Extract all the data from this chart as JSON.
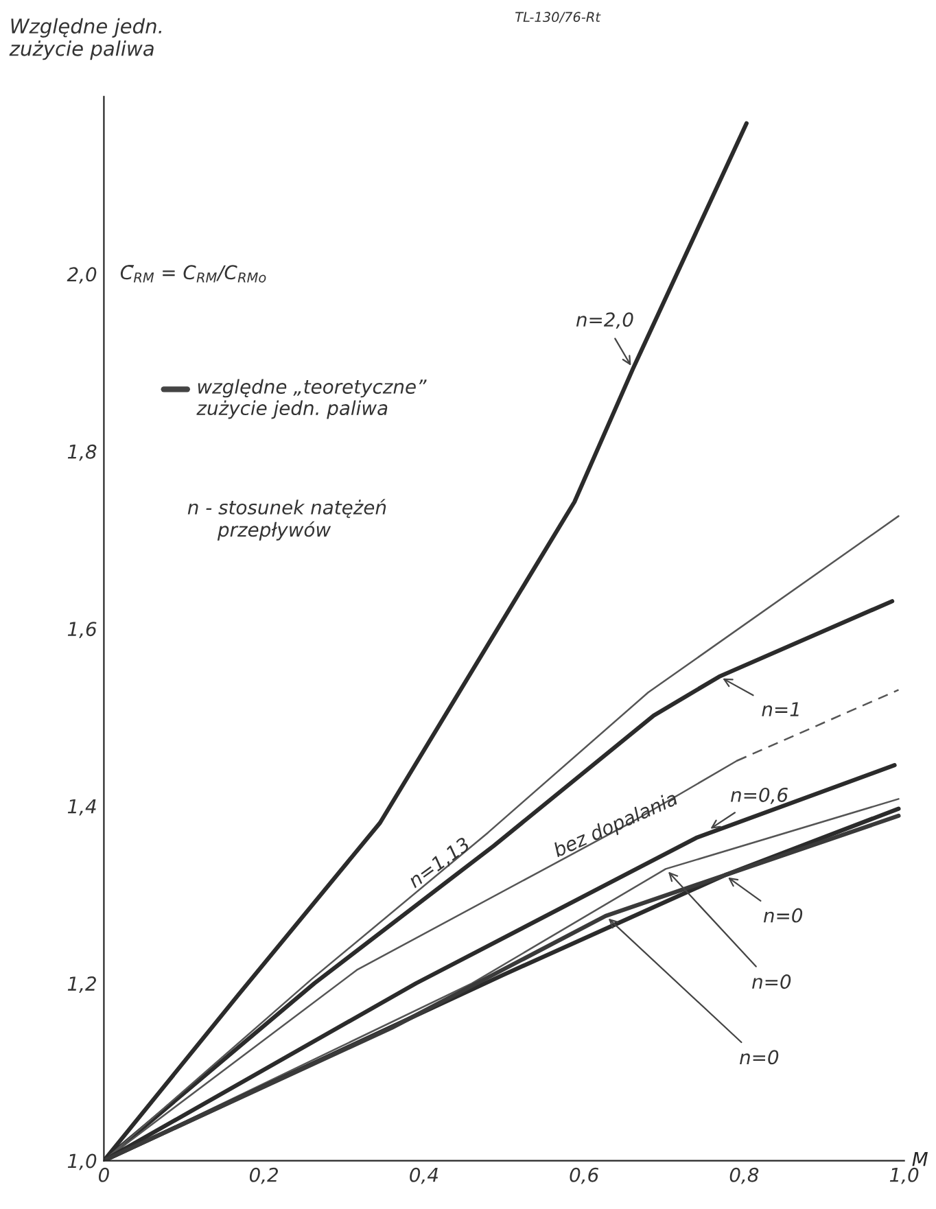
{
  "chart_data": {
    "type": "line",
    "ylabel": "Względne jedn.\nzużycie paliwa",
    "subtitle": "C̄$_{RM}$ = C$_{RM}$/C$_{RMo}$",
    "xlabel": "M",
    "xlim": [
      0,
      1.0
    ],
    "ylim": [
      1.0,
      2.2
    ],
    "xticks": [
      0,
      {
        "value": 0.2,
        "label": "0,2"
      },
      {
        "value": 0.4,
        "label": "0,4"
      },
      {
        "value": 0.6,
        "label": "0,6"
      },
      {
        "value": 0.8,
        "label": "0,8"
      },
      {
        "value": 1.0,
        "label": "1,0"
      }
    ],
    "yticks": [
      {
        "value": 1.0,
        "label": "1,0"
      },
      {
        "value": 1.2,
        "label": "1,2"
      },
      {
        "value": 1.4,
        "label": "1,4"
      },
      {
        "value": 1.6,
        "label": "1,6"
      },
      {
        "value": 1.8,
        "label": "1,8"
      },
      {
        "value": 2.0,
        "label": "2,0"
      }
    ],
    "grid": false,
    "series": [
      {
        "color": "#2b2b2b",
        "x": [
          0,
          0.168,
          0.345,
          0.588,
          0.661,
          0.803
        ],
        "values": [
          1.0,
          1.187,
          1.381,
          1.743,
          1.893,
          2.17
        ]
      },
      {
        "color": "#2b2b2b",
        "x": [
          0,
          0.263,
          0.487,
          0.687,
          0.769,
          0.985
        ],
        "values": [
          1.0,
          1.2,
          1.355,
          1.502,
          1.546,
          1.631
        ]
      },
      {
        "color": "#555555",
        "x": [
          0,
          0.26,
          0.48,
          0.68,
          0.993
        ],
        "values": [
          1.0,
          1.205,
          1.37,
          1.528,
          1.727
        ]
      },
      {
        "color": "#555555",
        "x": [
          0,
          0.316,
          0.658,
          0.791
        ],
        "values": [
          1.0,
          1.215,
          1.381,
          1.451
        ]
      },
      {
        "color": "#555555",
        "line_style": "dashed",
        "x": [
          0.791,
          0.993
        ],
        "values": [
          1.451,
          1.531
        ]
      },
      {
        "color": "#2b2b2b",
        "x": [
          0,
          0.39,
          0.74,
          0.988
        ],
        "values": [
          1.0,
          1.2,
          1.364,
          1.446
        ]
      },
      {
        "color": "#555555",
        "x": [
          0,
          0.46,
          0.702,
          0.993
        ],
        "values": [
          1.0,
          1.2,
          1.329,
          1.408
        ]
      },
      {
        "color": "#2b2b2b",
        "x": [
          0,
          0.5,
          0.776,
          0.993
        ],
        "values": [
          1.0,
          1.21,
          1.322,
          1.397
        ]
      },
      {
        "color": "#3a3a3a",
        "x": [
          0,
          0.36,
          0.627,
          0.993
        ],
        "values": [
          1.0,
          1.15,
          1.276,
          1.389
        ]
      }
    ],
    "annotations": [
      {
        "text": "n=2,0",
        "x": 0.661,
        "y": 1.893
      },
      {
        "text": "n=1",
        "x": 0.769,
        "y": 1.546
      },
      {
        "text": "n=1,13",
        "x": 0.42,
        "y": 1.335
      },
      {
        "text": "bez dopalania",
        "x": 0.64,
        "y": 1.378
      },
      {
        "text": "n=0,6",
        "x": 0.754,
        "y": 1.372
      },
      {
        "text": "n=0",
        "x": 0.776,
        "y": 1.322
      },
      {
        "text": "n=0",
        "x": 0.702,
        "y": 1.329
      },
      {
        "text": "n=0",
        "x": 0.627,
        "y": 1.276
      },
      "względne „teoretyczne”\nzużycie jedn. paliwa",
      "n - stosunek natężeń\n     przepływów",
      "TL-130/76-Rt"
    ]
  }
}
